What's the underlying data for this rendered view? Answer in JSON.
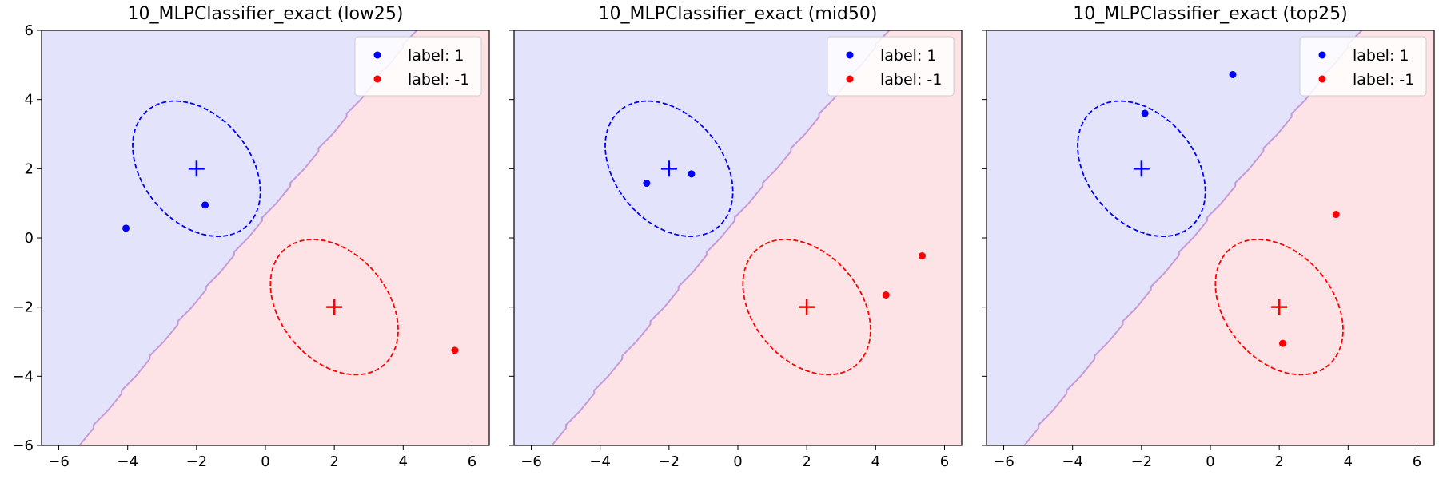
{
  "colors": {
    "class_pos": "#0000ff",
    "class_neg": "#ff0000",
    "region_pos": "#e3e3fb",
    "region_neg": "#fde3e5",
    "boundary": "#c79ad6"
  },
  "chart_data": [
    {
      "type": "scatter",
      "title": "10_MLPClassifier_exact (low25)",
      "xlim": [
        -6.5,
        6.5
      ],
      "ylim": [
        -6,
        6
      ],
      "xticks": [
        -6,
        -4,
        -2,
        0,
        2,
        4,
        6
      ],
      "yticks": [
        -6,
        -4,
        -2,
        0,
        2,
        4,
        6
      ],
      "show_yticklabels": true,
      "legend": {
        "placement": "top-right",
        "entries": [
          "label: 1",
          "label: -1"
        ]
      },
      "decision_boundary": {
        "bottom_x": -5.4,
        "top_x": 4.4,
        "upper_left_class": "label: 1",
        "lower_right_class": "label: -1"
      },
      "centers": [
        {
          "series": "label: 1",
          "x": -2,
          "y": 2
        },
        {
          "series": "label: -1",
          "x": 2,
          "y": -2
        }
      ],
      "ellipses": [
        {
          "series": "label: 1",
          "cx": -2,
          "cy": 2,
          "rx": 1.55,
          "ry": 2.2,
          "angle_deg": -40
        },
        {
          "series": "label: -1",
          "cx": 2,
          "cy": -2,
          "rx": 1.55,
          "ry": 2.2,
          "angle_deg": -40
        }
      ],
      "series": [
        {
          "name": "label: 1",
          "points": [
            {
              "x": -4.05,
              "y": 0.28
            },
            {
              "x": -1.75,
              "y": 0.95
            }
          ]
        },
        {
          "name": "label: -1",
          "points": [
            {
              "x": 5.5,
              "y": -3.25
            }
          ]
        }
      ]
    },
    {
      "type": "scatter",
      "title": "10_MLPClassifier_exact (mid50)",
      "xlim": [
        -6.5,
        6.5
      ],
      "ylim": [
        -6,
        6
      ],
      "xticks": [
        -6,
        -4,
        -2,
        0,
        2,
        4,
        6
      ],
      "yticks": [
        -6,
        -4,
        -2,
        0,
        2,
        4,
        6
      ],
      "show_yticklabels": false,
      "legend": {
        "placement": "top-right",
        "entries": [
          "label: 1",
          "label: -1"
        ]
      },
      "decision_boundary": {
        "bottom_x": -5.4,
        "top_x": 4.4,
        "upper_left_class": "label: 1",
        "lower_right_class": "label: -1"
      },
      "centers": [
        {
          "series": "label: 1",
          "x": -2,
          "y": 2
        },
        {
          "series": "label: -1",
          "x": 2,
          "y": -2
        }
      ],
      "ellipses": [
        {
          "series": "label: 1",
          "cx": -2,
          "cy": 2,
          "rx": 1.55,
          "ry": 2.2,
          "angle_deg": -40
        },
        {
          "series": "label: -1",
          "cx": 2,
          "cy": -2,
          "rx": 1.55,
          "ry": 2.2,
          "angle_deg": -40
        }
      ],
      "series": [
        {
          "name": "label: 1",
          "points": [
            {
              "x": -2.65,
              "y": 1.58
            },
            {
              "x": -1.35,
              "y": 1.85
            }
          ]
        },
        {
          "name": "label: -1",
          "points": [
            {
              "x": 4.3,
              "y": -1.65
            },
            {
              "x": 5.35,
              "y": -0.52
            }
          ]
        }
      ]
    },
    {
      "type": "scatter",
      "title": "10_MLPClassifier_exact (top25)",
      "xlim": [
        -6.5,
        6.5
      ],
      "ylim": [
        -6,
        6
      ],
      "xticks": [
        -6,
        -4,
        -2,
        0,
        2,
        4,
        6
      ],
      "yticks": [
        -6,
        -4,
        -2,
        0,
        2,
        4,
        6
      ],
      "show_yticklabels": false,
      "legend": {
        "placement": "top-right",
        "entries": [
          "label: 1",
          "label: -1"
        ]
      },
      "decision_boundary": {
        "bottom_x": -5.4,
        "top_x": 4.4,
        "upper_left_class": "label: 1",
        "lower_right_class": "label: -1"
      },
      "centers": [
        {
          "series": "label: 1",
          "x": -2,
          "y": 2
        },
        {
          "series": "label: -1",
          "x": 2,
          "y": -2
        }
      ],
      "ellipses": [
        {
          "series": "label: 1",
          "cx": -2,
          "cy": 2,
          "rx": 1.55,
          "ry": 2.2,
          "angle_deg": -40
        },
        {
          "series": "label: -1",
          "cx": 2,
          "cy": -2,
          "rx": 1.55,
          "ry": 2.2,
          "angle_deg": -40
        }
      ],
      "series": [
        {
          "name": "label: 1",
          "points": [
            {
              "x": -1.9,
              "y": 3.6
            },
            {
              "x": 0.65,
              "y": 4.72
            }
          ]
        },
        {
          "name": "label: -1",
          "points": [
            {
              "x": 3.65,
              "y": 0.68
            },
            {
              "x": 2.1,
              "y": -3.05
            }
          ]
        }
      ]
    }
  ]
}
